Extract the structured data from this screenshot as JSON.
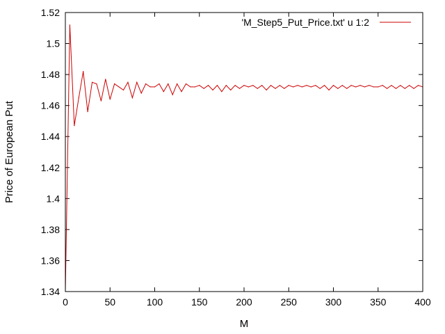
{
  "chart_data": {
    "type": "line",
    "title": "",
    "xlabel": "M",
    "ylabel": "Price of European Put",
    "xlim": [
      0,
      400
    ],
    "ylim": [
      1.34,
      1.52
    ],
    "xticks": [
      0,
      50,
      100,
      150,
      200,
      250,
      300,
      350,
      400
    ],
    "yticks": [
      1.34,
      1.36,
      1.38,
      1.4,
      1.42,
      1.44,
      1.46,
      1.48,
      1.5,
      1.52
    ],
    "xtick_labels": [
      "0",
      "50",
      "100",
      "150",
      "200",
      "250",
      "300",
      "350",
      "400"
    ],
    "ytick_labels": [
      "1.34",
      "1.36",
      "1.38",
      "1.4",
      "1.42",
      "1.44",
      "1.46",
      "1.48",
      "1.5",
      "1.52"
    ],
    "grid": false,
    "legend_position": "top-right",
    "series": [
      {
        "name": "'M_Step5_Put_Price.txt' u 1:2",
        "color": "#cc0000",
        "x": [
          0,
          5,
          10,
          15,
          20,
          25,
          30,
          35,
          40,
          45,
          50,
          55,
          60,
          65,
          70,
          75,
          80,
          85,
          90,
          95,
          100,
          105,
          110,
          115,
          120,
          125,
          130,
          135,
          140,
          145,
          150,
          155,
          160,
          165,
          170,
          175,
          180,
          185,
          190,
          195,
          200,
          205,
          210,
          215,
          220,
          225,
          230,
          235,
          240,
          245,
          250,
          255,
          260,
          265,
          270,
          275,
          280,
          285,
          290,
          295,
          300,
          305,
          310,
          315,
          320,
          325,
          330,
          335,
          340,
          345,
          350,
          355,
          360,
          365,
          370,
          375,
          380,
          385,
          390,
          395,
          400
        ],
        "y": [
          1.34,
          1.512,
          1.447,
          1.465,
          1.482,
          1.456,
          1.475,
          1.474,
          1.463,
          1.477,
          1.464,
          1.474,
          1.472,
          1.47,
          1.475,
          1.465,
          1.475,
          1.468,
          1.474,
          1.472,
          1.472,
          1.474,
          1.469,
          1.474,
          1.467,
          1.474,
          1.469,
          1.474,
          1.472,
          1.472,
          1.473,
          1.471,
          1.473,
          1.47,
          1.473,
          1.469,
          1.473,
          1.47,
          1.473,
          1.471,
          1.473,
          1.472,
          1.473,
          1.471,
          1.473,
          1.47,
          1.473,
          1.471,
          1.473,
          1.471,
          1.473,
          1.472,
          1.473,
          1.472,
          1.473,
          1.472,
          1.473,
          1.471,
          1.473,
          1.47,
          1.473,
          1.471,
          1.473,
          1.471,
          1.473,
          1.472,
          1.473,
          1.472,
          1.473,
          1.472,
          1.472,
          1.473,
          1.471,
          1.473,
          1.471,
          1.473,
          1.471,
          1.473,
          1.471,
          1.473,
          1.472
        ]
      }
    ]
  }
}
